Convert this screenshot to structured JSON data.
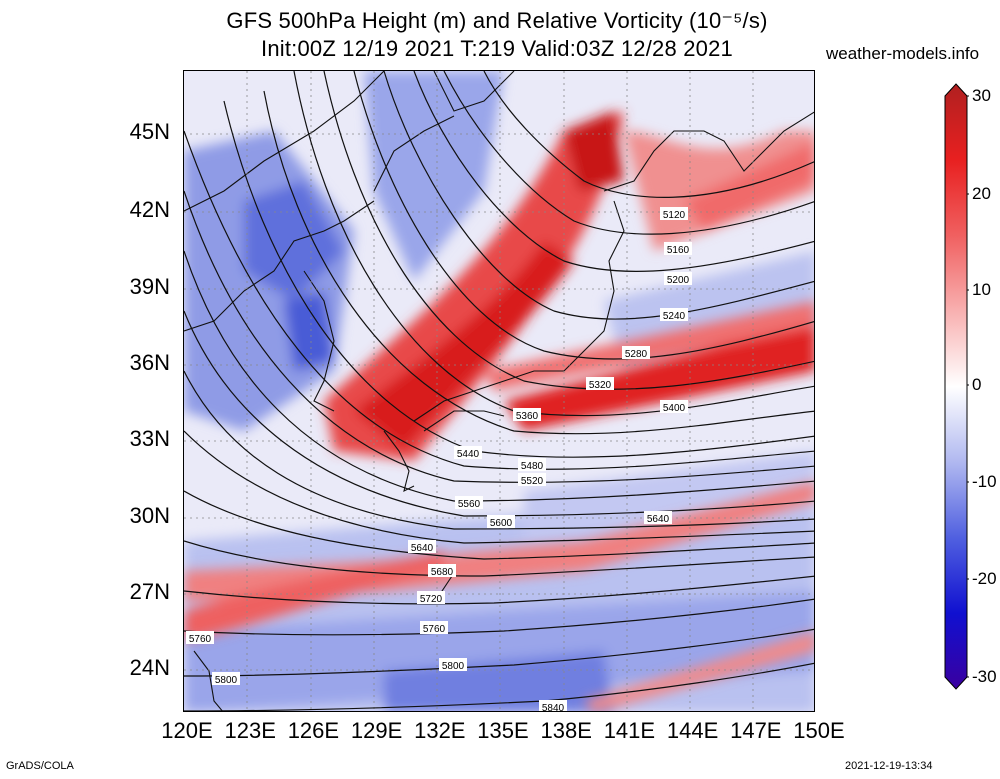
{
  "title_line1": "GFS 500hPa Height (m) and Relative Vorticity (10⁻⁵/s)",
  "title_line2": "Init:00Z 12/19 2021 T:219 Valid:03Z 12/28 2021",
  "site": "weather-models.info",
  "lat_labels": [
    "45N",
    "42N",
    "39N",
    "36N",
    "33N",
    "30N",
    "27N",
    "24N"
  ],
  "lon_labels": [
    "120E",
    "123E",
    "126E",
    "129E",
    "132E",
    "135E",
    "138E",
    "141E",
    "144E",
    "147E",
    "150E"
  ],
  "colorbar_ticks": [
    "30",
    "20",
    "10",
    "0",
    "-10",
    "-20",
    "-30"
  ],
  "colorbar_colors": [
    "#b02020",
    "#e82020",
    "#f06060",
    "#f8b0b0",
    "#ffffff",
    "#b0b8f0",
    "#5060e0",
    "#1010d0",
    "#3a00a0"
  ],
  "contour_labels": [
    "5120",
    "5160",
    "5200",
    "5240",
    "5280",
    "5320",
    "5360",
    "5400",
    "5440",
    "5480",
    "5520",
    "5560",
    "5600",
    "5640",
    "5640",
    "5680",
    "5720",
    "5760",
    "5760",
    "5800",
    "5800",
    "5840"
  ],
  "footer_left": "GrADS/COLA",
  "footer_right": "2021-12-19-13:34"
}
